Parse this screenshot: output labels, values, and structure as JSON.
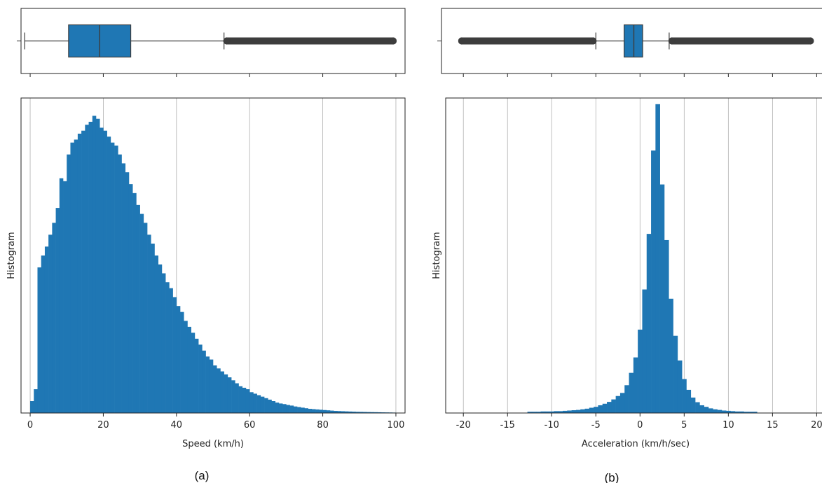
{
  "chart_data": [
    {
      "id": "speed",
      "type": "bar",
      "caption": "(a)",
      "xlabel": "Speed (km/h)",
      "ylabel": "Histogram",
      "xlim": [
        -2.5,
        102.5
      ],
      "xticks": [
        0,
        20,
        40,
        60,
        80,
        100
      ],
      "bin_width": 1,
      "bin_start": 0,
      "ylim": [
        0,
        1.06
      ],
      "grid": "x",
      "color": "#1f77b4",
      "values": [
        0.04,
        0.08,
        0.49,
        0.53,
        0.56,
        0.6,
        0.64,
        0.69,
        0.79,
        0.78,
        0.87,
        0.91,
        0.92,
        0.94,
        0.95,
        0.97,
        0.98,
        1.0,
        0.99,
        0.96,
        0.95,
        0.93,
        0.91,
        0.9,
        0.87,
        0.84,
        0.81,
        0.77,
        0.74,
        0.7,
        0.67,
        0.64,
        0.6,
        0.57,
        0.53,
        0.5,
        0.47,
        0.44,
        0.42,
        0.39,
        0.36,
        0.34,
        0.31,
        0.29,
        0.27,
        0.25,
        0.23,
        0.21,
        0.19,
        0.18,
        0.16,
        0.15,
        0.14,
        0.13,
        0.12,
        0.11,
        0.1,
        0.09,
        0.085,
        0.08,
        0.07,
        0.065,
        0.06,
        0.055,
        0.05,
        0.045,
        0.04,
        0.035,
        0.032,
        0.03,
        0.027,
        0.025,
        0.022,
        0.02,
        0.018,
        0.016,
        0.014,
        0.013,
        0.012,
        0.011,
        0.01,
        0.009,
        0.008,
        0.007,
        0.0065,
        0.006,
        0.0055,
        0.005,
        0.0045,
        0.004,
        0.0038,
        0.0035,
        0.0032,
        0.003,
        0.0028,
        0.0025,
        0.0022,
        0.002,
        0.0018,
        0.0015
      ],
      "box": {
        "whisker_low": -1.5,
        "q1": 10.5,
        "median": 19,
        "q3": 27.5,
        "whisker_high": 53,
        "outliers_range": [
          53,
          100
        ]
      }
    },
    {
      "id": "acceleration",
      "type": "bar",
      "caption": "(b)",
      "xlabel": "Acceleration (km/h/sec)",
      "ylabel": "Histogram",
      "xlim": [
        -22,
        21
      ],
      "xticks": [
        -20,
        -15,
        -10,
        -5,
        0,
        5,
        10,
        15,
        20
      ],
      "bin_width": 0.5,
      "bin_start": -12.75,
      "ylim": [
        0,
        1.02
      ],
      "grid": "x",
      "color": "#1f77b4",
      "values": [
        0.004,
        0.004,
        0.004,
        0.005,
        0.005,
        0.005,
        0.006,
        0.006,
        0.007,
        0.008,
        0.009,
        0.01,
        0.012,
        0.014,
        0.017,
        0.02,
        0.025,
        0.03,
        0.036,
        0.044,
        0.055,
        0.065,
        0.09,
        0.13,
        0.18,
        0.27,
        0.4,
        0.58,
        0.85,
        1.0,
        0.74,
        0.56,
        0.37,
        0.25,
        0.17,
        0.11,
        0.075,
        0.05,
        0.035,
        0.025,
        0.02,
        0.015,
        0.012,
        0.01,
        0.008,
        0.007,
        0.006,
        0.005,
        0.005,
        0.004,
        0.004,
        0.004
      ],
      "box": {
        "whisker_low": -5,
        "q1": -1.8,
        "median": -0.7,
        "q3": 0.3,
        "whisker_high": 3.3,
        "outliers_low_range": [
          -20.5,
          -5
        ],
        "outliers_high_range": [
          3.3,
          19.6
        ]
      }
    }
  ]
}
